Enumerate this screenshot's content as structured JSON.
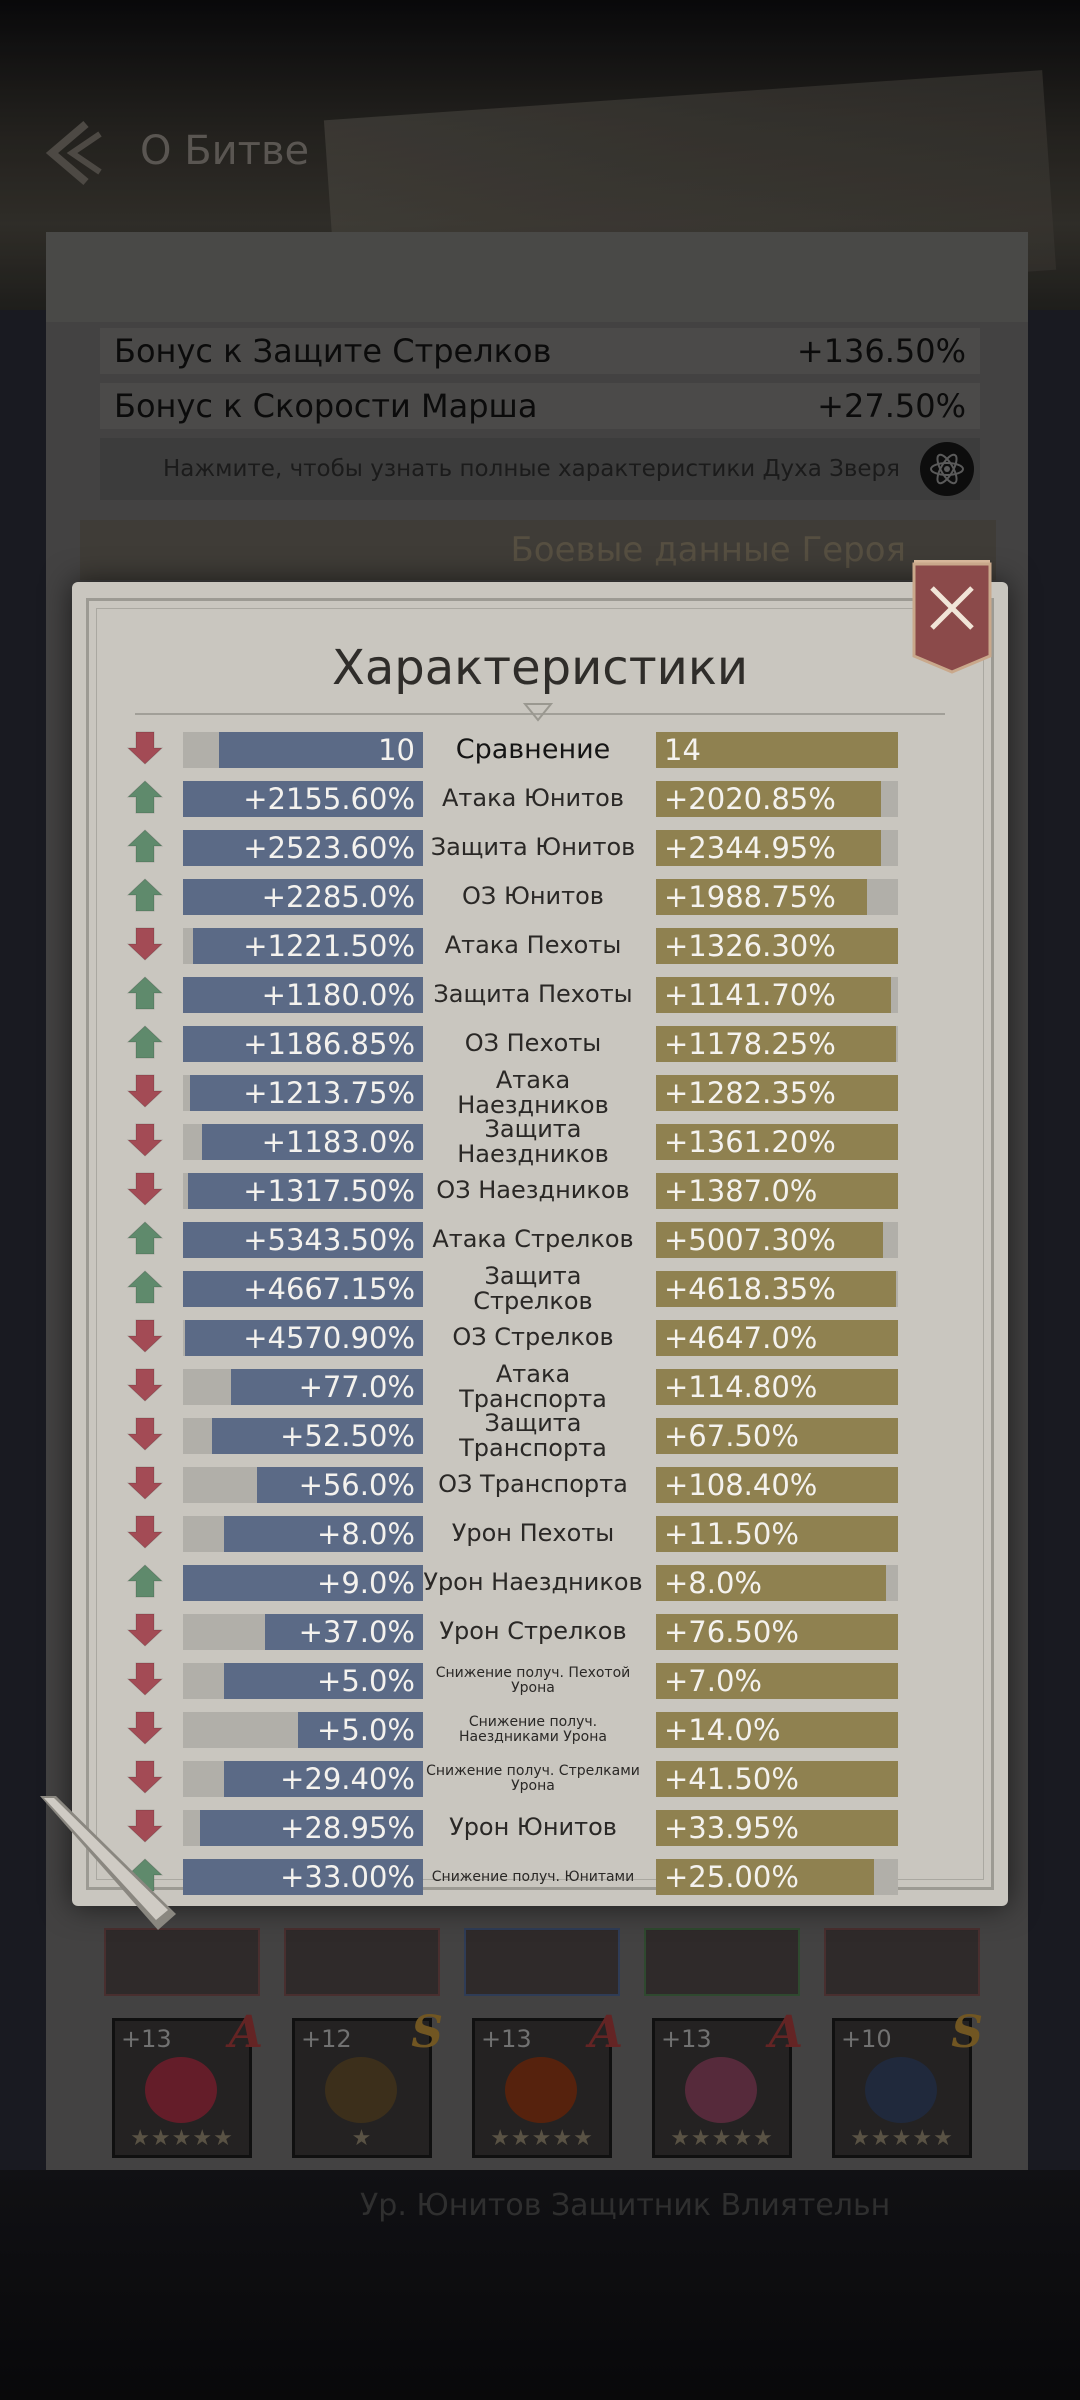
{
  "header": {
    "title": "О Битве"
  },
  "background": {
    "bonus_rows": [
      {
        "label": "Бонус к Защите Стрелков",
        "value": "+136.50%"
      },
      {
        "label": "Бонус к Скорости Марша",
        "value": "+27.50%"
      }
    ],
    "hint": "Нажмите, чтобы узнать полные характеристики Духа Зверя",
    "hero_data_label": "Боевые данные Героя",
    "equipment": [
      {
        "level": "+13",
        "grade": "A",
        "stars": "★★★★★",
        "color": "#8c2b3a"
      },
      {
        "level": "+12",
        "grade": "S",
        "stars": "★",
        "color": "#5a4220"
      },
      {
        "level": "+13",
        "grade": "A",
        "stars": "★★★★★",
        "color": "#7a3010"
      },
      {
        "level": "+13",
        "grade": "A",
        "stars": "★★★★★",
        "color": "#7a3a55"
      },
      {
        "level": "+10",
        "grade": "S",
        "stars": "★★★★★",
        "color": "#2a3550"
      }
    ],
    "bottom_text": "Ур. Юнитов Защитник Влиятельн"
  },
  "modal": {
    "title": "Характеристики",
    "rows": [
      {
        "arrow": "down",
        "left": "10",
        "right": "14",
        "name": "Сравнение",
        "lf": 0.85,
        "rf": 1.0,
        "type": "head"
      },
      {
        "arrow": "up",
        "left": "+2155.60%",
        "right": "+2020.85%",
        "name": "Атака Юнитов",
        "lf": 1.0,
        "rf": 0.93
      },
      {
        "arrow": "up",
        "left": "+2523.60%",
        "right": "+2344.95%",
        "name": "Защита Юнитов",
        "lf": 1.0,
        "rf": 0.93
      },
      {
        "arrow": "up",
        "left": "+2285.0%",
        "right": "+1988.75%",
        "name": "ОЗ Юнитов",
        "lf": 1.0,
        "rf": 0.87
      },
      {
        "arrow": "down",
        "left": "+1221.50%",
        "right": "+1326.30%",
        "name": "Атака Пехоты",
        "lf": 0.96,
        "rf": 1.0
      },
      {
        "arrow": "up",
        "left": "+1180.0%",
        "right": "+1141.70%",
        "name": "Защита Пехоты",
        "lf": 1.0,
        "rf": 0.97
      },
      {
        "arrow": "up",
        "left": "+1186.85%",
        "right": "+1178.25%",
        "name": "ОЗ Пехоты",
        "lf": 1.0,
        "rf": 0.99
      },
      {
        "arrow": "down",
        "left": "+1213.75%",
        "right": "+1282.35%",
        "name": "Атака Наездников",
        "lf": 0.97,
        "rf": 1.0
      },
      {
        "arrow": "down",
        "left": "+1183.0%",
        "right": "+1361.20%",
        "name": "Защита Наездников",
        "lf": 0.92,
        "rf": 1.0
      },
      {
        "arrow": "down",
        "left": "+1317.50%",
        "right": "+1387.0%",
        "name": "ОЗ Наездников",
        "lf": 0.98,
        "rf": 1.0
      },
      {
        "arrow": "up",
        "left": "+5343.50%",
        "right": "+5007.30%",
        "name": "Атака Стрелков",
        "lf": 1.0,
        "rf": 0.94
      },
      {
        "arrow": "up",
        "left": "+4667.15%",
        "right": "+4618.35%",
        "name": "Защита Стрелков",
        "lf": 1.0,
        "rf": 0.99
      },
      {
        "arrow": "down",
        "left": "+4570.90%",
        "right": "+4647.0%",
        "name": "ОЗ Стрелков",
        "lf": 0.99,
        "rf": 1.0
      },
      {
        "arrow": "down",
        "left": "+77.0%",
        "right": "+114.80%",
        "name": "Атака Транспорта",
        "lf": 0.8,
        "rf": 1.0
      },
      {
        "arrow": "down",
        "left": "+52.50%",
        "right": "+67.50%",
        "name": "Защита Транспорта",
        "lf": 0.88,
        "rf": 1.0
      },
      {
        "arrow": "down",
        "left": "+56.0%",
        "right": "+108.40%",
        "name": "ОЗ Транспорта",
        "lf": 0.69,
        "rf": 1.0
      },
      {
        "arrow": "down",
        "left": "+8.0%",
        "right": "+11.50%",
        "name": "Урон Пехоты",
        "lf": 0.83,
        "rf": 1.0
      },
      {
        "arrow": "up",
        "left": "+9.0%",
        "right": "+8.0%",
        "name": "Урон Наездников",
        "lf": 1.0,
        "rf": 0.95
      },
      {
        "arrow": "down",
        "left": "+37.0%",
        "right": "+76.50%",
        "name": "Урон Стрелков",
        "lf": 0.66,
        "rf": 1.0
      },
      {
        "arrow": "down",
        "left": "+5.0%",
        "right": "+7.0%",
        "name": "Снижение получ. Пехотой Урона",
        "lf": 0.83,
        "rf": 1.0,
        "type": "small"
      },
      {
        "arrow": "down",
        "left": "+5.0%",
        "right": "+14.0%",
        "name": "Снижение получ. Наездниками Урона",
        "lf": 0.52,
        "rf": 1.0,
        "type": "small"
      },
      {
        "arrow": "down",
        "left": "+29.40%",
        "right": "+41.50%",
        "name": "Снижение получ. Стрелками Урона",
        "lf": 0.83,
        "rf": 1.0,
        "type": "small"
      },
      {
        "arrow": "down",
        "left": "+28.95%",
        "right": "+33.95%",
        "name": "Урон Юнитов",
        "lf": 0.93,
        "rf": 1.0
      },
      {
        "arrow": "up",
        "left": "+33.00%",
        "right": "+25.00%",
        "name": "Снижение получ. Юнитами",
        "lf": 1.0,
        "rf": 0.9,
        "type": "small"
      }
    ]
  },
  "colors": {
    "up_arrow": "#5f8a6c",
    "down_arrow": "#a34b55",
    "left_fill": "#5b6a86",
    "right_fill": "#8f8150",
    "close_button": "#8b4a4a"
  }
}
